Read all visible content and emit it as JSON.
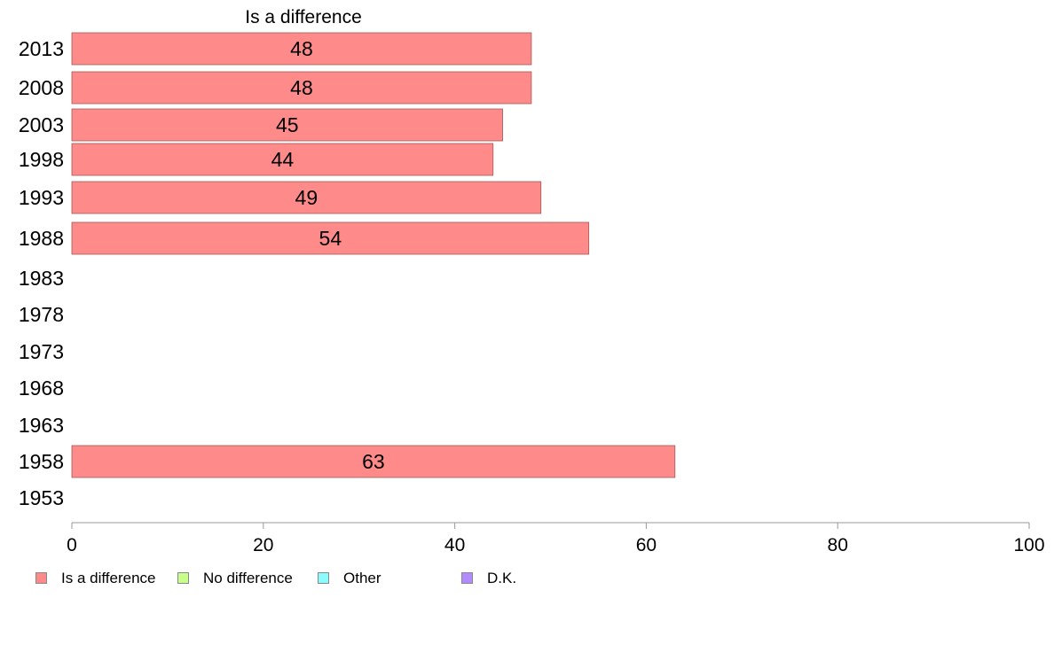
{
  "chart_data": {
    "type": "bar",
    "orientation": "horizontal",
    "title": "Is a difference",
    "categories": [
      "2013",
      "2008",
      "2003",
      "1998",
      "1993",
      "1988",
      "1983",
      "1978",
      "1973",
      "1968",
      "1963",
      "1958",
      "1953"
    ],
    "series": [
      {
        "name": "Is a difference",
        "color": "#ff8a8a",
        "values": [
          48,
          48,
          45,
          44,
          49,
          54,
          null,
          null,
          null,
          null,
          null,
          63,
          null
        ],
        "labels": [
          "48",
          "48",
          "45",
          "44",
          "49",
          "54",
          "",
          "",
          "",
          "",
          "",
          "63",
          ""
        ]
      }
    ],
    "xlim": [
      0,
      100
    ],
    "xticks": [
      "0",
      "20",
      "40",
      "60",
      "80",
      "100"
    ],
    "grid": false,
    "legend": {
      "placement": "bottom",
      "entries": [
        {
          "label": "Is a difference",
          "color": "#ff8a8a"
        },
        {
          "label": "No difference",
          "color": "#c8ff8a"
        },
        {
          "label": "Other",
          "color": "#8afcff"
        },
        {
          "label": "D.K.",
          "color": "#b48aff"
        }
      ]
    }
  }
}
